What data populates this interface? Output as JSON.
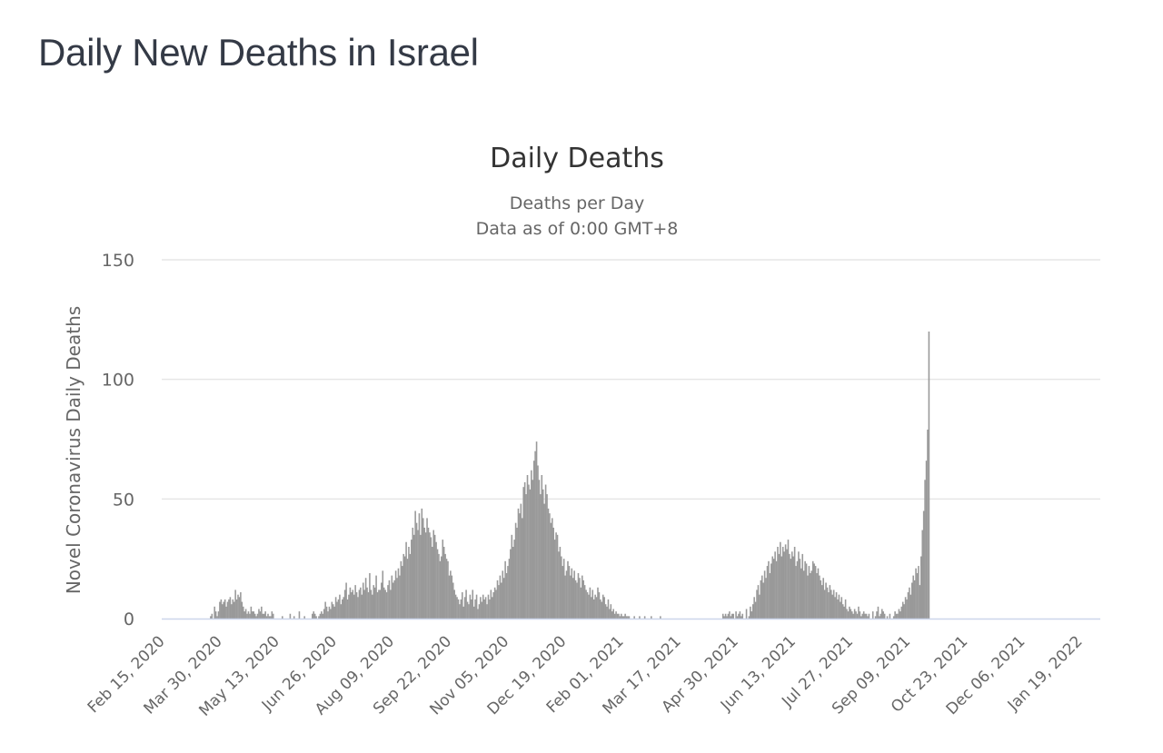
{
  "page": {
    "title": "Daily New Deaths in Israel"
  },
  "chart_data": {
    "type": "bar",
    "title": "Daily Deaths",
    "subtitle": "Deaths per Day",
    "subtitle2": "Data as of 0:00 GMT+8",
    "xlabel": "",
    "ylabel": "Novel Coronavirus Daily Deaths",
    "ylim": [
      0,
      150
    ],
    "yticks": [
      0,
      50,
      100,
      150
    ],
    "grid": true,
    "legend": "none",
    "bar_color": "#999999",
    "grid_color": "#e6e6e6",
    "axis_color": "#ccd6eb",
    "start_date": "Feb 15, 2020",
    "xtick_interval_days": 44,
    "xtick_labels": [
      "Feb 15, 2020",
      "Mar 30, 2020",
      "May 13, 2020",
      "Jun 26, 2020",
      "Aug 09, 2020",
      "Sep 22, 2020",
      "Nov 05, 2020",
      "Dec 19, 2020",
      "Feb 01, 2021",
      "Mar 17, 2021",
      "Apr 30, 2021",
      "Jun 13, 2021",
      "Jul 27, 2021",
      "Sep 09, 2021",
      "Oct 23, 2021",
      "Dec 06, 2021",
      "Jan 19, 2022"
    ],
    "values": [
      0,
      0,
      0,
      0,
      0,
      0,
      0,
      0,
      0,
      0,
      0,
      0,
      0,
      0,
      0,
      0,
      0,
      0,
      0,
      0,
      0,
      0,
      0,
      0,
      0,
      0,
      0,
      0,
      0,
      0,
      0,
      0,
      0,
      0,
      0,
      0,
      0,
      1,
      2,
      0,
      5,
      3,
      1,
      3,
      7,
      8,
      6,
      7,
      8,
      5,
      7,
      8,
      9,
      6,
      8,
      7,
      12,
      8,
      10,
      9,
      11,
      7,
      5,
      3,
      4,
      2,
      3,
      2,
      5,
      3,
      3,
      2,
      1,
      2,
      4,
      3,
      5,
      2,
      2,
      3,
      1,
      2,
      1,
      1,
      3,
      2,
      0,
      0,
      0,
      0,
      0,
      0,
      1,
      0,
      0,
      0,
      0,
      0,
      2,
      0,
      0,
      1,
      0,
      0,
      0,
      3,
      0,
      0,
      0,
      1,
      0,
      0,
      0,
      0,
      0,
      2,
      3,
      2,
      1,
      0,
      1,
      2,
      3,
      2,
      4,
      7,
      5,
      3,
      5,
      4,
      7,
      6,
      5,
      9,
      7,
      8,
      10,
      6,
      8,
      9,
      12,
      15,
      8,
      10,
      13,
      11,
      12,
      10,
      14,
      11,
      9,
      12,
      13,
      10,
      15,
      12,
      17,
      13,
      11,
      19,
      12,
      10,
      14,
      13,
      18,
      11,
      12,
      12,
      15,
      20,
      13,
      12,
      11,
      14,
      16,
      12,
      18,
      15,
      16,
      20,
      17,
      21,
      18,
      24,
      22,
      27,
      26,
      32,
      25,
      30,
      27,
      33,
      38,
      35,
      45,
      40,
      37,
      44,
      35,
      46,
      42,
      38,
      36,
      42,
      38,
      36,
      34,
      30,
      37,
      35,
      32,
      29,
      27,
      24,
      26,
      33,
      30,
      27,
      25,
      24,
      18,
      20,
      18,
      15,
      12,
      10,
      9,
      8,
      6,
      8,
      11,
      5,
      9,
      12,
      7,
      6,
      10,
      8,
      12,
      5,
      8,
      10,
      4,
      6,
      9,
      7,
      10,
      8,
      9,
      6,
      10,
      8,
      12,
      9,
      11,
      13,
      12,
      16,
      14,
      18,
      15,
      20,
      17,
      24,
      19,
      22,
      25,
      29,
      35,
      30,
      33,
      40,
      38,
      46,
      44,
      48,
      42,
      55,
      57,
      52,
      60,
      56,
      54,
      62,
      58,
      66,
      70,
      74,
      64,
      58,
      52,
      60,
      54,
      48,
      56,
      52,
      46,
      44,
      40,
      42,
      38,
      33,
      36,
      35,
      28,
      30,
      26,
      22,
      25,
      18,
      20,
      24,
      22,
      18,
      21,
      17,
      20,
      16,
      15,
      19,
      17,
      13,
      18,
      16,
      14,
      12,
      11,
      10,
      13,
      9,
      12,
      8,
      10,
      9,
      13,
      11,
      8,
      7,
      10,
      9,
      6,
      5,
      8,
      4,
      6,
      3,
      4,
      2,
      3,
      2,
      2,
      1,
      2,
      1,
      1,
      2,
      1,
      1,
      1,
      0,
      0,
      0,
      1,
      0,
      0,
      0,
      1,
      0,
      0,
      0,
      1,
      0,
      0,
      0,
      0,
      1,
      0,
      0,
      0,
      0,
      0,
      0,
      1,
      0,
      0,
      0,
      0,
      0,
      0,
      0,
      0,
      0,
      0,
      0,
      0,
      0,
      0,
      0,
      0,
      0,
      0,
      0,
      0,
      0,
      0,
      0,
      0,
      0,
      0,
      0,
      0,
      0,
      0,
      0,
      0,
      0,
      0,
      0,
      0,
      0,
      0,
      0,
      0,
      0,
      0,
      0,
      0,
      0,
      0,
      0,
      2,
      1,
      2,
      1,
      2,
      3,
      1,
      2,
      2,
      0,
      3,
      1,
      2,
      3,
      1,
      2,
      0,
      0,
      4,
      0,
      1,
      5,
      3,
      6,
      9,
      7,
      12,
      14,
      10,
      16,
      18,
      15,
      20,
      17,
      22,
      24,
      19,
      23,
      26,
      25,
      28,
      24,
      30,
      27,
      32,
      26,
      30,
      28,
      31,
      29,
      33,
      27,
      25,
      28,
      26,
      30,
      22,
      24,
      28,
      25,
      21,
      27,
      20,
      24,
      23,
      18,
      22,
      19,
      20,
      24,
      23,
      22,
      19,
      21,
      18,
      16,
      14,
      17,
      12,
      15,
      13,
      11,
      14,
      12,
      10,
      12,
      9,
      11,
      8,
      10,
      7,
      9,
      6,
      5,
      8,
      4,
      3,
      5,
      4,
      3,
      2,
      4,
      3,
      2,
      5,
      3,
      1,
      2,
      3,
      2,
      2,
      1,
      2,
      0,
      0,
      3,
      0,
      1,
      3,
      5,
      1,
      2,
      4,
      3,
      2,
      0,
      1,
      0,
      2,
      0,
      0,
      1,
      3,
      2,
      2,
      4,
      3,
      5,
      7,
      6,
      9,
      8,
      11,
      13,
      10,
      15,
      18,
      16,
      21,
      19,
      22,
      14,
      26,
      37,
      45,
      58,
      66,
      79,
      120
    ]
  }
}
